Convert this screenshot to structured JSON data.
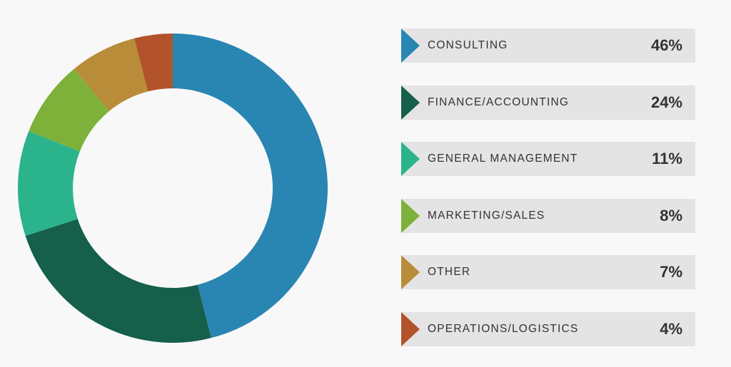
{
  "chart_data": {
    "type": "pie",
    "donut": true,
    "categories": [
      "CONSULTING",
      "FINANCE/ACCOUNTING",
      "GENERAL MANAGEMENT",
      "MARKETING/SALES",
      "OTHER",
      "OPERATIONS/LOGISTICS"
    ],
    "values": [
      46,
      24,
      11,
      8,
      7,
      4
    ],
    "value_labels": [
      "46%",
      "24%",
      "11%",
      "8%",
      "7%",
      "4%"
    ],
    "colors": [
      "#2985b1",
      "#155f4b",
      "#2bb38c",
      "#7db13a",
      "#b88c39",
      "#b2532c"
    ],
    "legend_position": "right"
  }
}
